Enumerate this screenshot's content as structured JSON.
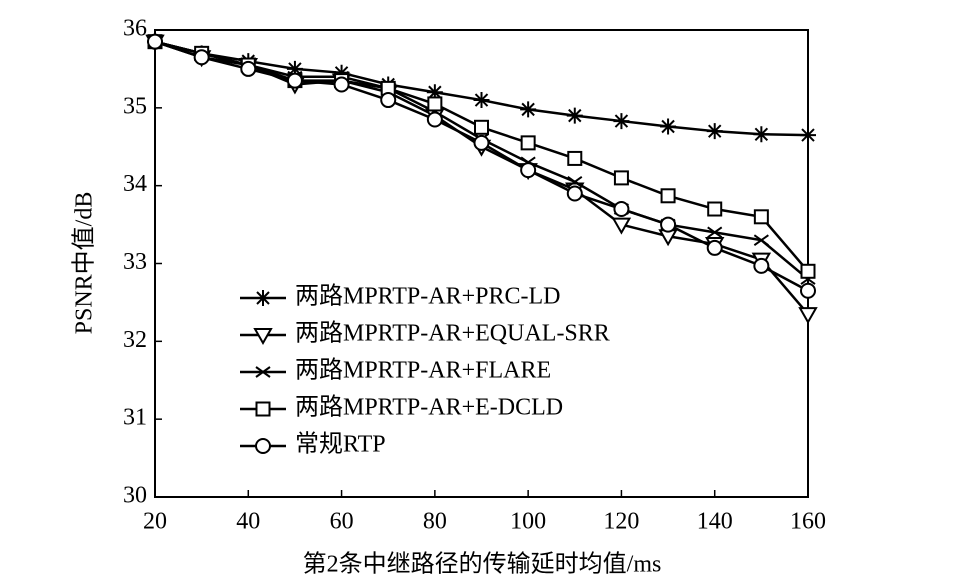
{
  "chart_data": {
    "type": "line",
    "xlabel": "第2条中继路径的传输延时均值/ms",
    "ylabel": "PSNR中值/dB",
    "x": [
      20,
      30,
      40,
      50,
      60,
      70,
      80,
      90,
      100,
      110,
      120,
      130,
      140,
      150,
      160
    ],
    "series": [
      {
        "name": "两路MPRTP-AR+PRC-LD",
        "color": "#000000",
        "marker": "star",
        "values": [
          35.85,
          35.7,
          35.6,
          35.5,
          35.45,
          35.3,
          35.2,
          35.1,
          34.98,
          34.9,
          34.83,
          34.76,
          34.7,
          34.66,
          34.65
        ]
      },
      {
        "name": "两路MPRTP-AR+EQUAL-SRR",
        "color": "#000000",
        "marker": "triangle-down",
        "values": [
          35.85,
          35.65,
          35.55,
          35.3,
          35.35,
          35.2,
          34.9,
          34.5,
          34.2,
          33.95,
          33.5,
          33.35,
          33.25,
          33.05,
          32.35
        ]
      },
      {
        "name": "两路MPRTP-AR+FLARE",
        "color": "#000000",
        "marker": "x",
        "values": [
          35.85,
          35.7,
          35.55,
          35.4,
          35.4,
          35.25,
          34.95,
          34.6,
          34.3,
          34.05,
          33.7,
          33.5,
          33.4,
          33.3,
          32.8
        ]
      },
      {
        "name": "两路MPRTP-AR+E-DCLD",
        "color": "#000000",
        "marker": "square",
        "values": [
          35.85,
          35.7,
          35.55,
          35.35,
          35.35,
          35.25,
          35.05,
          34.75,
          34.55,
          34.35,
          34.1,
          33.87,
          33.7,
          33.6,
          32.9
        ]
      },
      {
        "name": "常规RTP",
        "color": "#000000",
        "marker": "circle",
        "values": [
          35.85,
          35.65,
          35.5,
          35.35,
          35.3,
          35.1,
          34.85,
          34.55,
          34.2,
          33.9,
          33.7,
          33.5,
          33.2,
          32.97,
          32.65
        ]
      }
    ],
    "xlim": [
      20,
      160
    ],
    "xticks": [
      20,
      40,
      60,
      80,
      100,
      120,
      140,
      160
    ],
    "ylim": [
      30,
      36
    ],
    "yticks": [
      30,
      31,
      32,
      33,
      34,
      35,
      36
    ]
  }
}
